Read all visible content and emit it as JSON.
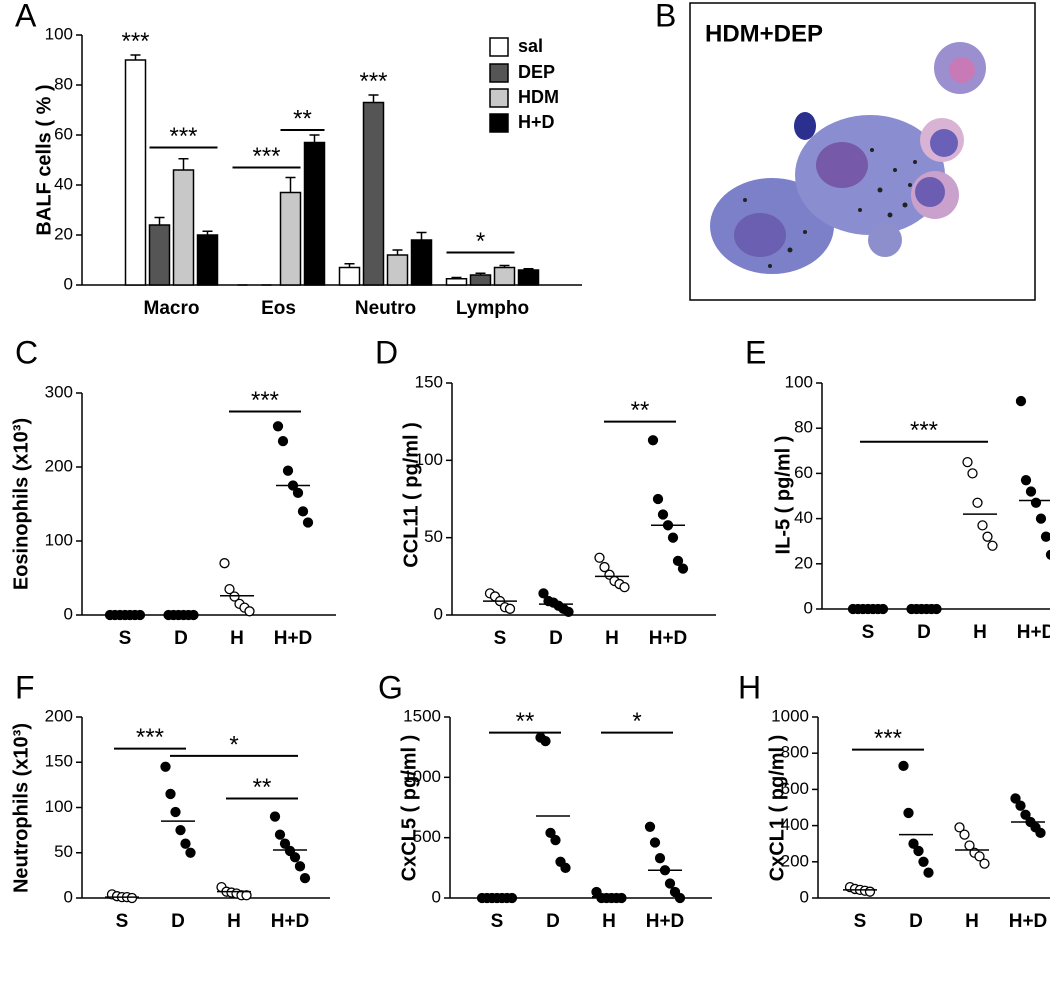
{
  "chart_data": [
    {
      "type": "bar",
      "panel": "A",
      "ylabel": "BALF cells ( % )",
      "categories": [
        "Macro",
        "Eos",
        "Neutro",
        "Lympho"
      ],
      "series": [
        {
          "name": "sal",
          "color": "#ffffff",
          "values": [
            90,
            0,
            7,
            2.5
          ],
          "errors": [
            2,
            0,
            1.5,
            0.5
          ]
        },
        {
          "name": "DEP",
          "color": "#555555",
          "values": [
            24,
            0,
            73,
            4
          ],
          "errors": [
            3,
            0,
            3,
            0.7
          ]
        },
        {
          "name": "HDM",
          "color": "#c8c8c8",
          "values": [
            46,
            37,
            12,
            7
          ],
          "errors": [
            4.5,
            6,
            2,
            0.8
          ]
        },
        {
          "name": "H+D",
          "color": "#000000",
          "values": [
            20,
            57,
            18,
            6
          ],
          "errors": [
            1.5,
            3,
            3,
            0.5
          ]
        }
      ],
      "ylim": [
        0,
        100
      ],
      "yticks": [
        0,
        20,
        40,
        60,
        80,
        100
      ],
      "legend": "upper right",
      "annotations": [
        {
          "text": "***",
          "category": 0,
          "from": 0,
          "to": 0,
          "y": 93
        },
        {
          "text": "***",
          "category": 0,
          "from": 1,
          "to": 3,
          "y": 55
        },
        {
          "text": "***",
          "category": 1,
          "from": 0,
          "to": 2,
          "y": 47
        },
        {
          "text": "**",
          "category": 1,
          "from": 2,
          "to": 3,
          "y": 62
        },
        {
          "text": "***",
          "category": 2,
          "from": 1,
          "to": 1,
          "y": 77
        },
        {
          "text": "*",
          "category": 3,
          "from": 0,
          "to": 2,
          "y": 13
        }
      ]
    },
    {
      "type": "image",
      "panel": "B",
      "title": "HDM+DEP"
    },
    {
      "type": "dot",
      "panel": "C",
      "ylabel": "Eosinophils (x10³)",
      "categories": [
        "S",
        "D",
        "H",
        "H+D"
      ],
      "points": [
        [
          0,
          0,
          0,
          0,
          0,
          0,
          0
        ],
        [
          0,
          0,
          0,
          0,
          0,
          0
        ],
        [
          70,
          35,
          25,
          15,
          10,
          5
        ],
        [
          255,
          235,
          195,
          175,
          165,
          140,
          125
        ]
      ],
      "means": [
        0,
        0,
        26,
        175
      ],
      "open": [
        false,
        false,
        true,
        false
      ],
      "ylim": [
        0,
        300
      ],
      "yticks": [
        0,
        100,
        200,
        300
      ],
      "annotations": [
        {
          "text": "***",
          "from": 2,
          "to": 3,
          "y": 275
        }
      ]
    },
    {
      "type": "dot",
      "panel": "D",
      "ylabel": "CCL11 ( pg/ml )",
      "categories": [
        "S",
        "D",
        "H",
        "H+D"
      ],
      "points": [
        [
          14,
          12,
          9,
          5,
          4
        ],
        [
          14,
          9,
          8,
          6,
          4,
          2
        ],
        [
          37,
          31,
          26,
          22,
          20,
          18
        ],
        [
          113,
          75,
          65,
          58,
          50,
          35,
          30
        ]
      ],
      "means": [
        9,
        7,
        25,
        58
      ],
      "open": [
        true,
        false,
        true,
        false
      ],
      "ylim": [
        0,
        150
      ],
      "yticks": [
        0,
        50,
        100,
        150
      ],
      "annotations": [
        {
          "text": "**",
          "from": 2,
          "to": 3,
          "y": 125
        }
      ]
    },
    {
      "type": "dot",
      "panel": "E",
      "ylabel": "IL-5 ( pg/ml )",
      "categories": [
        "S",
        "D",
        "H",
        "H+D"
      ],
      "points": [
        [
          0,
          0,
          0,
          0,
          0,
          0,
          0
        ],
        [
          0,
          0,
          0,
          0,
          0,
          0
        ],
        [
          65,
          60,
          47,
          37,
          32,
          28
        ],
        [
          92,
          57,
          52,
          47,
          40,
          32,
          24
        ]
      ],
      "means": [
        0,
        0,
        42,
        48
      ],
      "open": [
        false,
        false,
        true,
        false
      ],
      "ylim": [
        0,
        100
      ],
      "yticks": [
        0,
        20,
        40,
        60,
        80,
        100
      ],
      "annotations": [
        {
          "text": "***",
          "from": 0,
          "to": 2,
          "y": 74
        }
      ]
    },
    {
      "type": "dot",
      "panel": "F",
      "ylabel": "Neutrophils (x10³)",
      "categories": [
        "S",
        "D",
        "H",
        "H+D"
      ],
      "points": [
        [
          4,
          2,
          1,
          1,
          0
        ],
        [
          145,
          115,
          95,
          75,
          60,
          50
        ],
        [
          12,
          7,
          6,
          5,
          3,
          3
        ],
        [
          90,
          70,
          60,
          52,
          45,
          35,
          22
        ]
      ],
      "means": [
        1,
        85,
        7,
        53
      ],
      "open": [
        true,
        false,
        true,
        false
      ],
      "ylim": [
        0,
        200
      ],
      "yticks": [
        0,
        50,
        100,
        150,
        200
      ],
      "annotations": [
        {
          "text": "***",
          "from": 0,
          "to": 1,
          "y": 165
        },
        {
          "text": "*",
          "from": 1,
          "to": 3,
          "y": 157
        },
        {
          "text": "**",
          "from": 2,
          "to": 3,
          "y": 110
        }
      ]
    },
    {
      "type": "dot",
      "panel": "G",
      "ylabel": "CxCL5 ( pg/ml )",
      "categories": [
        "S",
        "D",
        "H",
        "H+D"
      ],
      "points": [
        [
          0,
          0,
          0,
          0,
          0,
          0,
          0
        ],
        [
          1330,
          1300,
          540,
          480,
          300,
          250
        ],
        [
          50,
          0,
          0,
          0,
          0,
          0
        ],
        [
          590,
          460,
          330,
          230,
          120,
          50,
          0
        ]
      ],
      "means": [
        0,
        680,
        10,
        230
      ],
      "open": [
        false,
        false,
        false,
        false
      ],
      "ylim": [
        0,
        1500
      ],
      "yticks": [
        0,
        500,
        1000,
        1500
      ],
      "annotations": [
        {
          "text": "**",
          "from": 0,
          "to": 1,
          "y": 1370
        },
        {
          "text": "*",
          "from": 2,
          "to": 3,
          "y": 1370
        }
      ]
    },
    {
      "type": "dot",
      "panel": "H",
      "ylabel": "CxCL1 ( pg/ml )",
      "categories": [
        "S",
        "D",
        "H",
        "H+D"
      ],
      "points": [
        [
          60,
          50,
          45,
          40,
          35
        ],
        [
          730,
          470,
          300,
          260,
          200,
          140
        ],
        [
          390,
          350,
          290,
          250,
          230,
          190
        ],
        [
          550,
          510,
          460,
          420,
          390,
          360
        ]
      ],
      "means": [
        45,
        350,
        265,
        420
      ],
      "open": [
        true,
        false,
        true,
        false
      ],
      "ylim": [
        0,
        1000
      ],
      "yticks": [
        0,
        200,
        400,
        600,
        800,
        1000
      ],
      "annotations": [
        {
          "text": "***",
          "from": 0,
          "to": 1,
          "y": 820
        }
      ]
    }
  ]
}
